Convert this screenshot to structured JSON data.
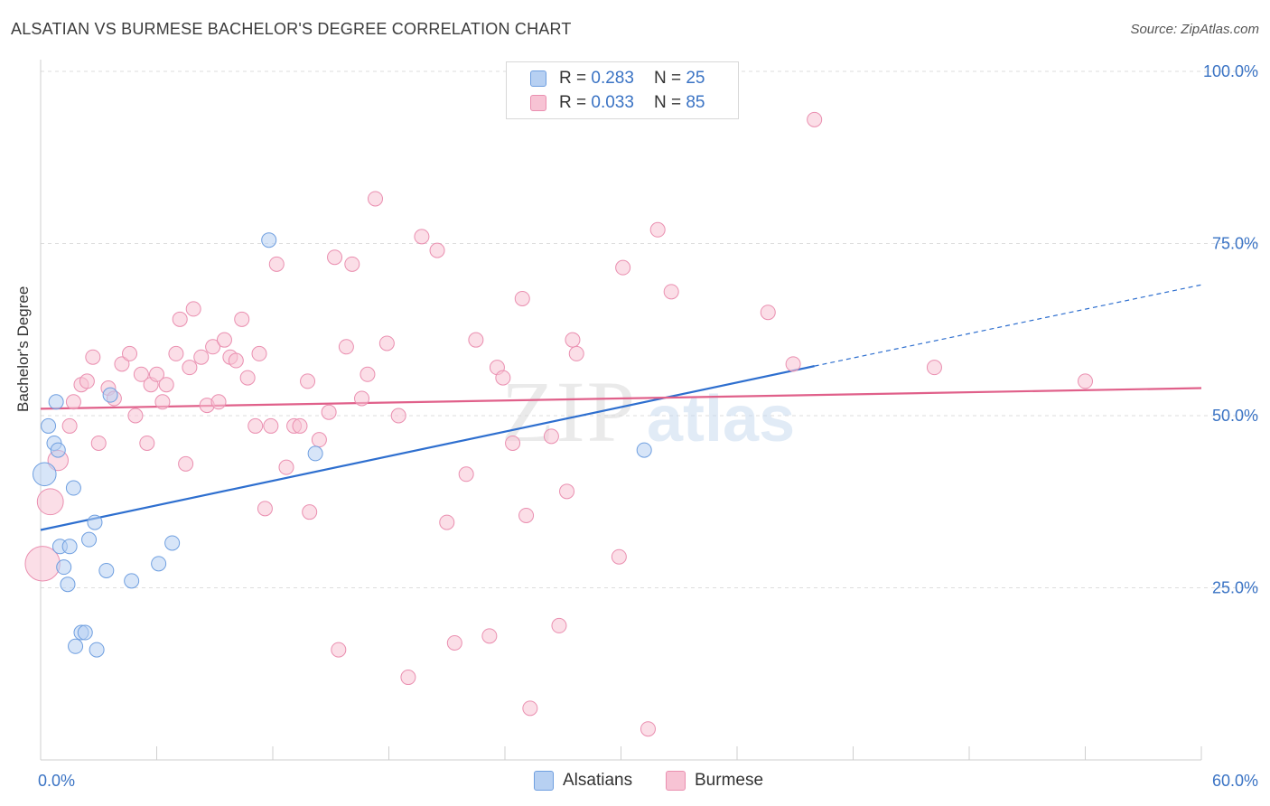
{
  "title": "ALSATIAN VS BURMESE BACHELOR'S DEGREE CORRELATION CHART",
  "source": "Source: ZipAtlas.com",
  "watermark": {
    "part1": "ZIP",
    "part2": "atlas"
  },
  "legend": {
    "rows": [
      {
        "r_label": "R =",
        "r_value": "0.283",
        "n_label": "N =",
        "n_value": "25"
      },
      {
        "r_label": "R =",
        "r_value": "0.033",
        "n_label": "N =",
        "n_value": "85"
      }
    ]
  },
  "bottom_legend": {
    "series1": "Alsatians",
    "series2": "Burmese"
  },
  "colors": {
    "blue_fill": "#b7d0f2",
    "blue_stroke": "#6f9fe0",
    "blue_line": "#2e6fcf",
    "pink_fill": "#f7c3d4",
    "pink_stroke": "#ea8fb0",
    "pink_line": "#e0608a",
    "tick_label": "#3a73c4"
  },
  "chart_data": {
    "type": "scatter",
    "title": "ALSATIAN VS BURMESE BACHELOR'S DEGREE CORRELATION CHART",
    "xlabel": "",
    "ylabel": "Bachelor's Degree",
    "xlim": [
      0,
      60
    ],
    "ylim": [
      0,
      100
    ],
    "x_tick_labels": [
      "0.0%",
      "60.0%"
    ],
    "y_ticks": [
      25,
      50,
      75,
      100
    ],
    "y_tick_labels": [
      "25.0%",
      "50.0%",
      "75.0%",
      "100.0%"
    ],
    "grid": true,
    "legend_position": "top-center",
    "series": [
      {
        "name": "Alsatians",
        "R": 0.283,
        "N": 25,
        "points": [
          [
            0.2,
            41.5,
            1.6
          ],
          [
            0.4,
            48.5,
            1
          ],
          [
            0.8,
            52,
            1
          ],
          [
            0.7,
            46,
            1
          ],
          [
            0.9,
            45,
            1
          ],
          [
            1.0,
            31,
            1
          ],
          [
            1.2,
            28,
            1
          ],
          [
            1.4,
            25.5,
            1
          ],
          [
            1.5,
            31,
            1
          ],
          [
            1.7,
            39.5,
            1
          ],
          [
            1.8,
            16.5,
            1
          ],
          [
            2.1,
            18.5,
            1
          ],
          [
            2.3,
            18.5,
            1
          ],
          [
            2.5,
            32,
            1
          ],
          [
            2.8,
            34.5,
            1
          ],
          [
            2.9,
            16,
            1
          ],
          [
            3.4,
            27.5,
            1
          ],
          [
            3.6,
            53,
            1
          ],
          [
            4.7,
            26,
            1
          ],
          [
            6.1,
            28.5,
            1
          ],
          [
            6.8,
            31.5,
            1
          ],
          [
            11.8,
            75.5,
            1
          ],
          [
            14.2,
            44.5,
            1
          ],
          [
            31.2,
            45,
            1
          ]
        ],
        "trend": {
          "x0": 0,
          "y0": 33.4,
          "x1": 40,
          "y1": 57.2,
          "dashed_to_x": 60,
          "dashed_to_y": 69
        }
      },
      {
        "name": "Burmese",
        "R": 0.033,
        "N": 85,
        "points": [
          [
            0.1,
            28.5,
            2.4
          ],
          [
            0.5,
            37.5,
            1.8
          ],
          [
            0.9,
            43.5,
            1.4
          ],
          [
            1.5,
            48.5,
            1
          ],
          [
            1.7,
            52,
            1
          ],
          [
            2.1,
            54.5,
            1
          ],
          [
            2.4,
            55,
            1
          ],
          [
            2.7,
            58.5,
            1
          ],
          [
            3.0,
            46,
            1
          ],
          [
            3.5,
            54,
            1
          ],
          [
            3.8,
            52.5,
            1
          ],
          [
            4.2,
            57.5,
            1
          ],
          [
            4.6,
            59,
            1
          ],
          [
            4.9,
            50,
            1
          ],
          [
            5.2,
            56,
            1
          ],
          [
            5.5,
            46,
            1
          ],
          [
            5.7,
            54.5,
            1
          ],
          [
            6.0,
            56,
            1
          ],
          [
            6.3,
            52,
            1
          ],
          [
            6.5,
            54.5,
            1
          ],
          [
            7.0,
            59,
            1
          ],
          [
            7.2,
            64,
            1
          ],
          [
            7.5,
            43,
            1
          ],
          [
            7.7,
            57,
            1
          ],
          [
            7.9,
            65.5,
            1
          ],
          [
            8.3,
            58.5,
            1
          ],
          [
            8.6,
            51.5,
            1
          ],
          [
            8.9,
            60,
            1
          ],
          [
            9.2,
            52,
            1
          ],
          [
            9.5,
            61,
            1
          ],
          [
            9.8,
            58.5,
            1
          ],
          [
            10.1,
            58,
            1
          ],
          [
            10.4,
            64,
            1
          ],
          [
            10.7,
            55.5,
            1
          ],
          [
            11.1,
            48.5,
            1
          ],
          [
            11.3,
            59,
            1
          ],
          [
            11.6,
            36.5,
            1
          ],
          [
            11.9,
            48.5,
            1
          ],
          [
            12.2,
            72,
            1
          ],
          [
            12.7,
            42.5,
            1
          ],
          [
            13.1,
            48.5,
            1
          ],
          [
            13.4,
            48.5,
            1
          ],
          [
            13.8,
            55,
            1
          ],
          [
            13.9,
            36,
            1
          ],
          [
            14.4,
            46.5,
            1
          ],
          [
            14.9,
            50.5,
            1
          ],
          [
            15.2,
            73,
            1
          ],
          [
            15.4,
            16,
            1
          ],
          [
            15.8,
            60,
            1
          ],
          [
            16.1,
            72,
            1
          ],
          [
            16.6,
            52.5,
            1
          ],
          [
            16.9,
            56,
            1
          ],
          [
            17.3,
            81.5,
            1
          ],
          [
            17.9,
            60.5,
            1
          ],
          [
            18.5,
            50,
            1
          ],
          [
            19.0,
            12,
            1
          ],
          [
            19.7,
            76,
            1
          ],
          [
            20.5,
            74,
            1
          ],
          [
            21.0,
            34.5,
            1
          ],
          [
            21.4,
            17,
            1
          ],
          [
            22.0,
            41.5,
            1
          ],
          [
            22.5,
            61,
            1
          ],
          [
            23.2,
            18,
            1
          ],
          [
            23.6,
            57,
            1
          ],
          [
            23.9,
            55.5,
            1
          ],
          [
            24.4,
            46,
            1
          ],
          [
            24.9,
            67,
            1
          ],
          [
            25.1,
            35.5,
            1
          ],
          [
            25.3,
            7.5,
            1
          ],
          [
            26.4,
            47,
            1
          ],
          [
            26.8,
            19.5,
            1
          ],
          [
            27.2,
            39,
            1
          ],
          [
            27.5,
            61,
            1
          ],
          [
            27.7,
            59,
            1
          ],
          [
            29.9,
            29.5,
            1
          ],
          [
            30.1,
            71.5,
            1
          ],
          [
            31.4,
            4.5,
            1
          ],
          [
            31.9,
            77,
            1
          ],
          [
            32.6,
            68,
            1
          ],
          [
            37.6,
            65,
            1
          ],
          [
            38.9,
            57.5,
            1
          ],
          [
            40.0,
            93,
            1
          ],
          [
            46.2,
            57,
            1
          ],
          [
            54.0,
            55,
            1
          ]
        ],
        "trend": {
          "x0": 0,
          "y0": 51,
          "x1": 60,
          "y1": 54
        }
      }
    ]
  }
}
